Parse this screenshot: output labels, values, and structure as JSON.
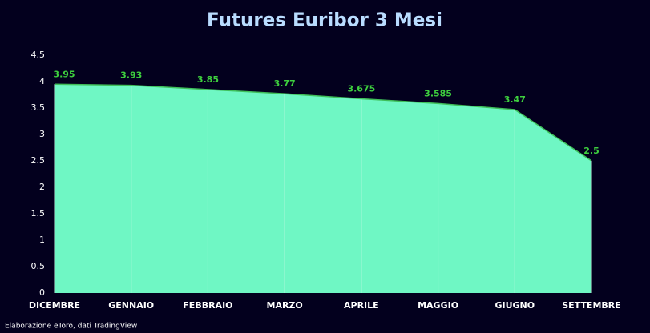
{
  "chart_data": {
    "type": "area",
    "title": "Futures Euribor 3 Mesi",
    "source": "Elaborazione eToro, dati TradingView",
    "categories": [
      "DICEMBRE",
      "GENNAIO",
      "FEBBRAIO",
      "MARZO",
      "APRILE",
      "MAGGIO",
      "GIUGNO",
      "SETTEMBRE"
    ],
    "values": [
      3.95,
      3.93,
      3.85,
      3.77,
      3.675,
      3.585,
      3.47,
      2.5
    ],
    "color": "#6ff7c4",
    "line_color": "#3fbf5a",
    "label_color": "#3ecf3e",
    "ylim": [
      0,
      4.5
    ],
    "yticks": [
      0,
      0.5,
      1,
      1.5,
      2,
      2.5,
      3,
      3.5,
      4,
      4.5
    ],
    "category_grid": true
  }
}
